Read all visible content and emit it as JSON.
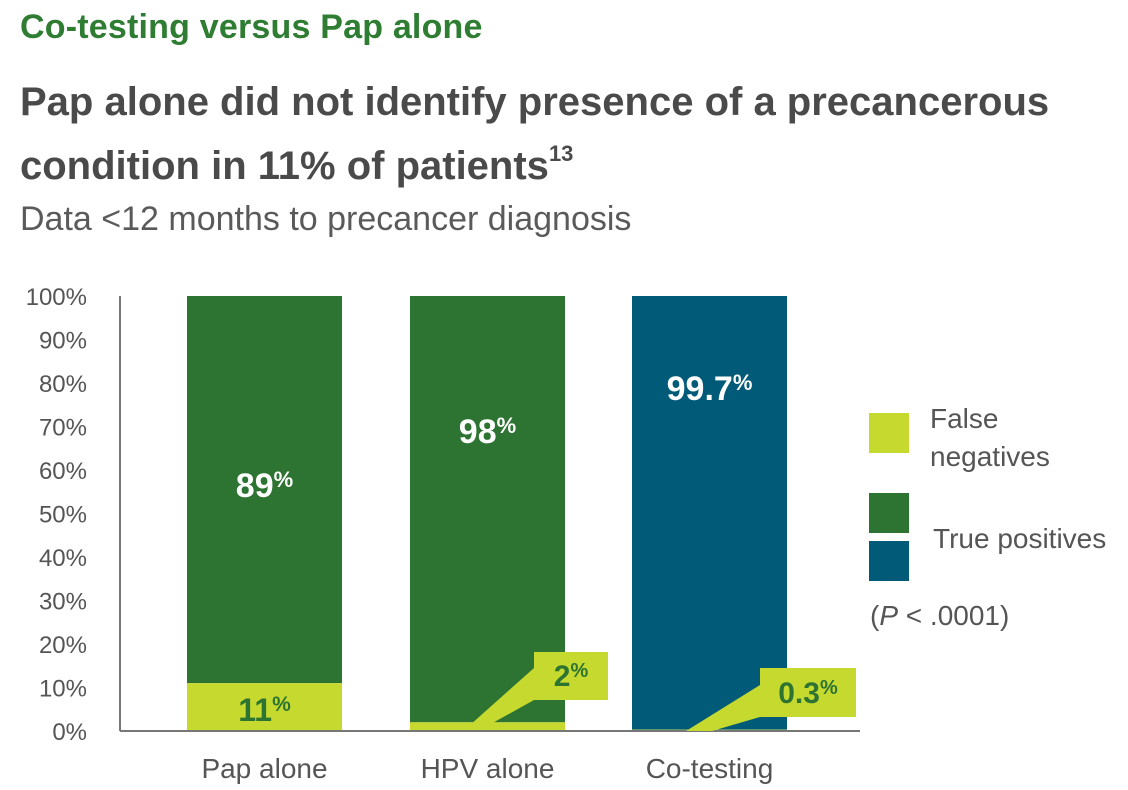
{
  "eyebrow": "Co-testing versus Pap alone",
  "headline": {
    "text": "Pap alone did not identify presence of a precancerous condition in 11% of patients",
    "footnote": "13"
  },
  "subhead": "Data <12 months to precancer diagnosis",
  "legend": {
    "false_negatives": "False negatives",
    "true_positives": "True positives"
  },
  "p_note": {
    "open": "(",
    "symbol": "P",
    "rest": " < .0001)"
  },
  "colors": {
    "true_positive_green": "#2d7331",
    "true_positive_blue": "#005a78",
    "false_negative": "#c6d92f",
    "heading_green": "#2e7d32"
  },
  "chart_data": {
    "type": "bar",
    "stacked": true,
    "categories": [
      "Pap alone",
      "HPV alone",
      "Co-testing"
    ],
    "series": [
      {
        "name": "False negatives",
        "values": [
          11,
          2,
          0.3
        ],
        "labels": [
          "11%",
          "2%",
          "0.3%"
        ]
      },
      {
        "name": "True positives",
        "values": [
          89,
          98,
          99.7
        ],
        "labels": [
          "89%",
          "98%",
          "99.7%"
        ]
      }
    ],
    "y_ticks": [
      "0%",
      "10%",
      "20%",
      "30%",
      "40%",
      "50%",
      "60%",
      "70%",
      "80%",
      "90%",
      "100%"
    ],
    "ylim": [
      0,
      100
    ],
    "grid": false,
    "legend_position": "right"
  }
}
